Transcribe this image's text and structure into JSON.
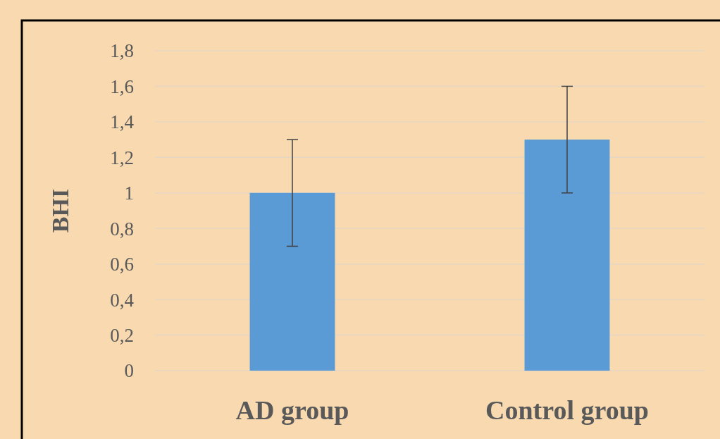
{
  "chart_data": {
    "type": "bar",
    "ylabel": "BHI",
    "categories": [
      "AD group",
      "Control group"
    ],
    "values": [
      1,
      1.3
    ],
    "errors": [
      0.3,
      0.3
    ],
    "color": "#5b9bd5",
    "ylim": [
      0,
      1.8
    ],
    "yticks": [
      0,
      {
        "value": 0.2,
        "label": "0,2"
      },
      {
        "value": 0.4,
        "label": "0,4"
      },
      {
        "value": 0.6,
        "label": "0,6"
      },
      {
        "value": 0.8,
        "label": "0,8"
      },
      1,
      {
        "value": 1.2,
        "label": "1,2"
      },
      {
        "value": 1.4,
        "label": "1,4"
      },
      {
        "value": 1.6,
        "label": "1,6"
      },
      {
        "value": 1.8,
        "label": "1,8"
      }
    ],
    "grid": "y"
  }
}
